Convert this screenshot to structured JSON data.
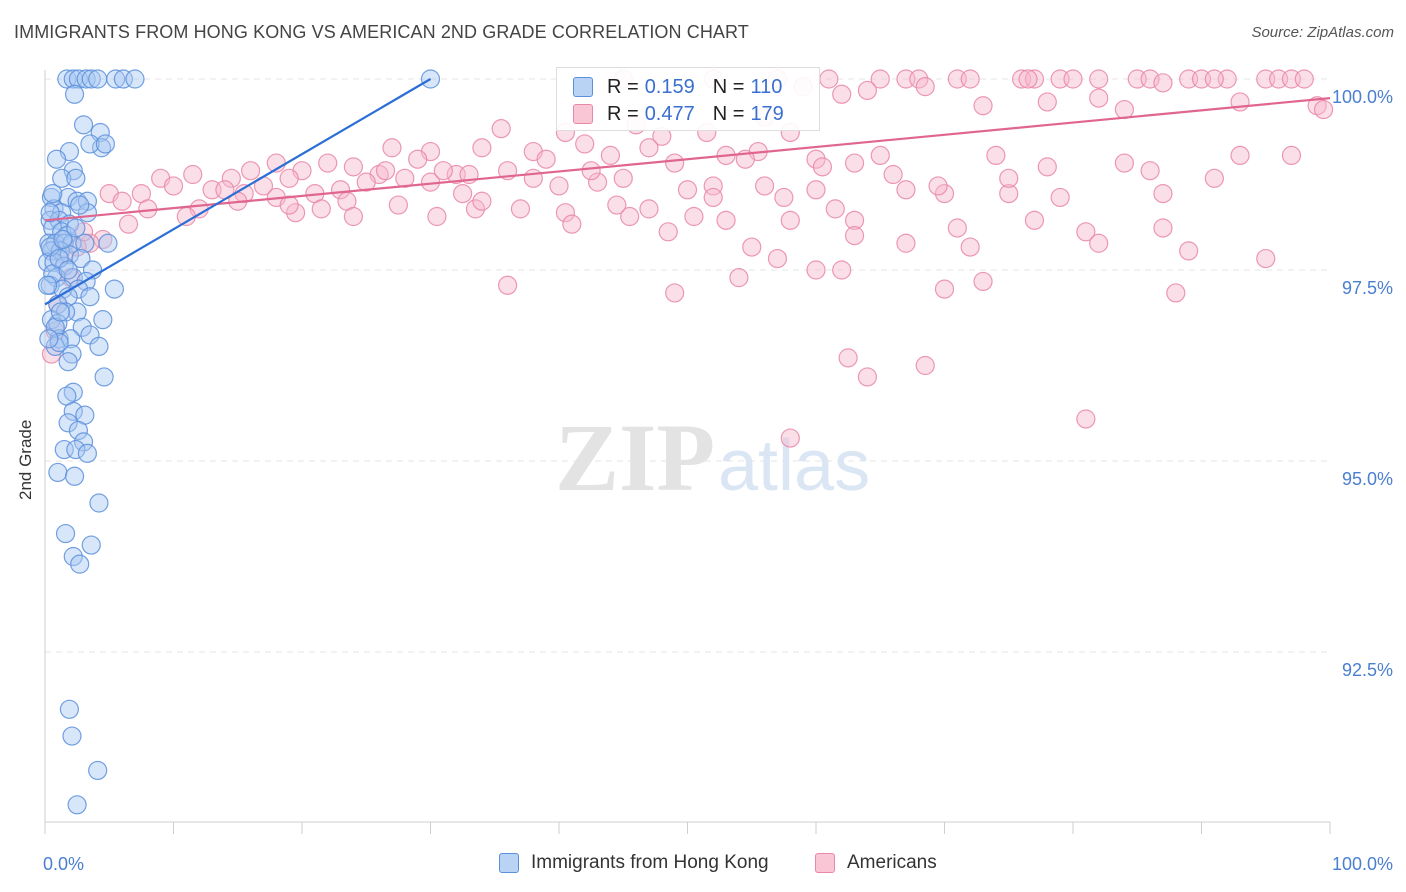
{
  "header": {
    "title": "IMMIGRANTS FROM HONG KONG VS AMERICAN 2ND GRADE CORRELATION CHART",
    "source": "Source: ZipAtlas.com"
  },
  "watermark": {
    "zip": "ZIP",
    "atlas": "atlas"
  },
  "legend": {
    "rows": [
      {
        "r_label": "R =",
        "r_value": "0.159",
        "n_label": "N =",
        "n_value": "110"
      },
      {
        "r_label": "R =",
        "r_value": "0.477",
        "n_label": "N =",
        "n_value": "179"
      }
    ]
  },
  "bottom_legend": {
    "items": [
      "Immigrants from Hong Kong",
      "Americans"
    ]
  },
  "chart_data": {
    "type": "scatter",
    "title": "IMMIGRANTS FROM HONG KONG VS AMERICAN 2ND GRADE CORRELATION CHART",
    "xlabel": "",
    "ylabel": "2nd Grade",
    "xlim": [
      0,
      100
    ],
    "ylim": [
      90.2,
      100.3
    ],
    "x_tick_labels": [
      "0.0%",
      "100.0%"
    ],
    "y_ticks": [
      92.5,
      95.0,
      97.5,
      100.0
    ],
    "y_tick_labels": [
      "92.5%",
      "95.0%",
      "97.5%",
      "100.0%"
    ],
    "grid": true,
    "legend_placement": "top-center",
    "colors": {
      "blue_fill": "#a9c8f2",
      "blue_stroke": "#5b8fdc",
      "blue_line": "#2b6fd6",
      "pink_fill": "#f6b8cb",
      "pink_stroke": "#e987a6",
      "pink_line": "#e0668f",
      "tick_label": "#4a7fd0"
    },
    "series": [
      {
        "name": "Immigrants from Hong Kong",
        "color": "blue",
        "trend": {
          "x": [
            0,
            30
          ],
          "y": [
            97.05,
            100.0
          ]
        },
        "points": [
          [
            1.7,
            100
          ],
          [
            2.2,
            100
          ],
          [
            2.6,
            100
          ],
          [
            3.2,
            100
          ],
          [
            3.6,
            100
          ],
          [
            4.1,
            100
          ],
          [
            5.5,
            100
          ],
          [
            6.1,
            100
          ],
          [
            7,
            100
          ],
          [
            2.3,
            99.8
          ],
          [
            3,
            99.4
          ],
          [
            4.3,
            99.3
          ],
          [
            4.4,
            99.1
          ],
          [
            1.9,
            99.05
          ],
          [
            3.5,
            99.15
          ],
          [
            4.7,
            99.15
          ],
          [
            0.9,
            98.95
          ],
          [
            2.2,
            98.8
          ],
          [
            1.3,
            98.7
          ],
          [
            2.4,
            98.7
          ],
          [
            0.5,
            98.45
          ],
          [
            1.8,
            98.45
          ],
          [
            2.5,
            98.4
          ],
          [
            3.3,
            98.4
          ],
          [
            0.7,
            98.3
          ],
          [
            1.3,
            98.25
          ],
          [
            3.3,
            98.25
          ],
          [
            0.4,
            98.15
          ],
          [
            1.1,
            98.15
          ],
          [
            1.9,
            98.1
          ],
          [
            0.6,
            98.05
          ],
          [
            1.3,
            98
          ],
          [
            1.7,
            97.95
          ],
          [
            0.3,
            97.85
          ],
          [
            0.8,
            97.85
          ],
          [
            1.5,
            97.85
          ],
          [
            2.1,
            97.85
          ],
          [
            3.1,
            97.85
          ],
          [
            4.9,
            97.85
          ],
          [
            0.5,
            97.75
          ],
          [
            1.2,
            97.75
          ],
          [
            1.9,
            97.7
          ],
          [
            2.8,
            97.65
          ],
          [
            0.2,
            97.6
          ],
          [
            0.7,
            97.6
          ],
          [
            1.5,
            97.55
          ],
          [
            3.7,
            97.5
          ],
          [
            0.9,
            97.4
          ],
          [
            2.2,
            97.4
          ],
          [
            3.2,
            97.35
          ],
          [
            0.4,
            97.3
          ],
          [
            1.4,
            97.25
          ],
          [
            2.6,
            97.25
          ],
          [
            5.4,
            97.25
          ],
          [
            1.8,
            97.15
          ],
          [
            3.5,
            97.15
          ],
          [
            1,
            97.05
          ],
          [
            2.5,
            96.95
          ],
          [
            1.6,
            96.95
          ],
          [
            0.5,
            96.85
          ],
          [
            1,
            96.8
          ],
          [
            4.5,
            96.85
          ],
          [
            2.9,
            96.75
          ],
          [
            3.5,
            96.65
          ],
          [
            1.1,
            96.6
          ],
          [
            2,
            96.6
          ],
          [
            0.8,
            96.5
          ],
          [
            4.2,
            96.5
          ],
          [
            2.1,
            96.4
          ],
          [
            1.8,
            96.3
          ],
          [
            4.6,
            96.1
          ],
          [
            2.2,
            95.9
          ],
          [
            1.7,
            95.85
          ],
          [
            2.2,
            95.65
          ],
          [
            3.1,
            95.6
          ],
          [
            1.8,
            95.5
          ],
          [
            2.6,
            95.4
          ],
          [
            3,
            95.25
          ],
          [
            1.5,
            95.15
          ],
          [
            2.4,
            95.15
          ],
          [
            3.3,
            95.1
          ],
          [
            1,
            94.85
          ],
          [
            2.3,
            94.8
          ],
          [
            4.2,
            94.45
          ],
          [
            1.6,
            94.05
          ],
          [
            3.6,
            93.9
          ],
          [
            2.2,
            93.75
          ],
          [
            2.7,
            93.65
          ],
          [
            1.9,
            91.75
          ],
          [
            2.1,
            91.4
          ],
          [
            4.1,
            90.95
          ],
          [
            2.5,
            90.5
          ],
          [
            30,
            100
          ],
          [
            0.4,
            98.25
          ],
          [
            0.4,
            97.8
          ],
          [
            0.6,
            97.45
          ],
          [
            0.8,
            96.75
          ],
          [
            1.2,
            96.95
          ],
          [
            1.4,
            97.9
          ],
          [
            0.2,
            97.3
          ],
          [
            1.1,
            96.55
          ],
          [
            2.7,
            98.35
          ],
          [
            0.6,
            98.5
          ],
          [
            1.1,
            97.65
          ],
          [
            2.4,
            98.05
          ],
          [
            0.3,
            96.6
          ],
          [
            1.8,
            97.5
          ]
        ]
      },
      {
        "name": "Americans",
        "color": "pink",
        "trend": {
          "x": [
            0,
            100
          ],
          "y": [
            98.15,
            99.75
          ]
        },
        "points": [
          [
            61,
            100
          ],
          [
            65,
            100
          ],
          [
            67,
            100
          ],
          [
            68,
            100
          ],
          [
            71,
            100
          ],
          [
            72,
            100
          ],
          [
            76,
            100
          ],
          [
            77,
            100
          ],
          [
            79,
            100
          ],
          [
            80,
            100
          ],
          [
            82,
            100
          ],
          [
            85,
            100
          ],
          [
            86,
            100
          ],
          [
            89,
            100
          ],
          [
            90,
            100
          ],
          [
            92,
            100
          ],
          [
            95,
            100
          ],
          [
            96,
            100
          ],
          [
            97,
            100
          ],
          [
            98,
            100
          ],
          [
            45,
            100
          ],
          [
            52,
            100
          ],
          [
            57,
            100
          ],
          [
            59,
            99.9
          ],
          [
            68.5,
            99.9
          ],
          [
            87,
            99.95
          ],
          [
            91,
            100
          ],
          [
            76.5,
            100
          ],
          [
            62,
            99.8
          ],
          [
            64,
            99.85
          ],
          [
            73,
            99.65
          ],
          [
            78,
            99.7
          ],
          [
            82,
            99.75
          ],
          [
            84,
            99.6
          ],
          [
            93,
            99.7
          ],
          [
            99,
            99.65
          ],
          [
            35.5,
            99.35
          ],
          [
            40.5,
            99.3
          ],
          [
            46,
            99.4
          ],
          [
            56,
            99.5
          ],
          [
            58,
            99.3
          ],
          [
            48,
            99.25
          ],
          [
            51.5,
            99.3
          ],
          [
            27,
            99.1
          ],
          [
            30,
            99.05
          ],
          [
            34,
            99.1
          ],
          [
            38,
            99.05
          ],
          [
            42,
            99.15
          ],
          [
            44,
            99.0
          ],
          [
            47,
            99.1
          ],
          [
            53,
            99.0
          ],
          [
            55.5,
            99.05
          ],
          [
            60,
            98.95
          ],
          [
            63,
            98.9
          ],
          [
            65,
            99.0
          ],
          [
            74,
            99.0
          ],
          [
            78,
            98.85
          ],
          [
            86,
            98.8
          ],
          [
            93,
            99.0
          ],
          [
            20,
            98.8
          ],
          [
            22,
            98.9
          ],
          [
            24,
            98.85
          ],
          [
            26,
            98.75
          ],
          [
            28,
            98.7
          ],
          [
            30,
            98.65
          ],
          [
            32,
            98.75
          ],
          [
            36,
            98.8
          ],
          [
            38,
            98.7
          ],
          [
            40,
            98.6
          ],
          [
            43,
            98.65
          ],
          [
            45,
            98.7
          ],
          [
            50,
            98.55
          ],
          [
            52,
            98.6
          ],
          [
            56,
            98.6
          ],
          [
            60,
            98.55
          ],
          [
            67,
            98.55
          ],
          [
            70,
            98.5
          ],
          [
            75,
            98.5
          ],
          [
            9,
            98.7
          ],
          [
            10,
            98.6
          ],
          [
            11.5,
            98.75
          ],
          [
            13,
            98.55
          ],
          [
            14.5,
            98.7
          ],
          [
            15.5,
            98.5
          ],
          [
            17,
            98.6
          ],
          [
            18,
            98.45
          ],
          [
            19,
            98.7
          ],
          [
            21,
            98.5
          ],
          [
            23,
            98.55
          ],
          [
            25,
            98.65
          ],
          [
            7.5,
            98.5
          ],
          [
            12,
            98.3
          ],
          [
            15,
            98.4
          ],
          [
            19.5,
            98.25
          ],
          [
            23.5,
            98.4
          ],
          [
            27.5,
            98.35
          ],
          [
            30.5,
            98.2
          ],
          [
            33.5,
            98.3
          ],
          [
            37,
            98.3
          ],
          [
            40.5,
            98.25
          ],
          [
            44.5,
            98.35
          ],
          [
            47,
            98.3
          ],
          [
            50.5,
            98.2
          ],
          [
            53,
            98.15
          ],
          [
            58,
            98.15
          ],
          [
            63,
            98.15
          ],
          [
            71,
            98.05
          ],
          [
            77,
            98.15
          ],
          [
            81,
            98.0
          ],
          [
            87,
            98.05
          ],
          [
            5,
            98.5
          ],
          [
            6,
            98.4
          ],
          [
            4.5,
            97.9
          ],
          [
            3.5,
            97.85
          ],
          [
            2.5,
            97.8
          ],
          [
            1.5,
            97.7
          ],
          [
            2,
            97.4
          ],
          [
            1,
            97.05
          ],
          [
            0.8,
            96.7
          ],
          [
            0.5,
            96.4
          ],
          [
            16,
            98.8
          ],
          [
            19,
            98.35
          ],
          [
            26.5,
            98.8
          ],
          [
            33,
            98.75
          ],
          [
            41,
            98.1
          ],
          [
            48.5,
            98.0
          ],
          [
            55,
            97.8
          ],
          [
            63,
            97.95
          ],
          [
            67,
            97.85
          ],
          [
            72,
            97.8
          ],
          [
            82,
            97.85
          ],
          [
            89,
            97.75
          ],
          [
            95,
            97.65
          ],
          [
            57,
            97.65
          ],
          [
            60,
            97.5
          ],
          [
            62,
            97.5
          ],
          [
            36,
            97.3
          ],
          [
            49,
            97.2
          ],
          [
            54,
            97.4
          ],
          [
            70,
            97.25
          ],
          [
            62.5,
            96.35
          ],
          [
            64,
            96.1
          ],
          [
            68.5,
            96.25
          ],
          [
            81,
            95.55
          ],
          [
            58,
            95.3
          ],
          [
            88,
            97.2
          ],
          [
            73,
            97.35
          ],
          [
            29,
            98.95
          ],
          [
            31,
            98.8
          ],
          [
            39,
            98.95
          ],
          [
            42.5,
            98.8
          ],
          [
            49,
            98.9
          ],
          [
            54.5,
            98.95
          ],
          [
            60.5,
            98.85
          ],
          [
            66,
            98.75
          ],
          [
            75,
            98.7
          ],
          [
            84,
            98.9
          ],
          [
            87,
            98.5
          ],
          [
            91,
            98.7
          ],
          [
            97,
            99.0
          ],
          [
            99.5,
            99.6
          ],
          [
            14,
            98.55
          ],
          [
            21.5,
            98.3
          ],
          [
            11,
            98.2
          ],
          [
            8,
            98.3
          ],
          [
            6.5,
            98.1
          ],
          [
            34,
            98.4
          ],
          [
            45.5,
            98.2
          ],
          [
            52,
            98.45
          ],
          [
            3,
            98.0
          ],
          [
            24,
            98.2
          ],
          [
            18,
            98.9
          ],
          [
            32.5,
            98.5
          ],
          [
            61.5,
            98.3
          ],
          [
            57.5,
            98.45
          ],
          [
            69.5,
            98.6
          ],
          [
            79,
            98.45
          ]
        ]
      }
    ]
  }
}
